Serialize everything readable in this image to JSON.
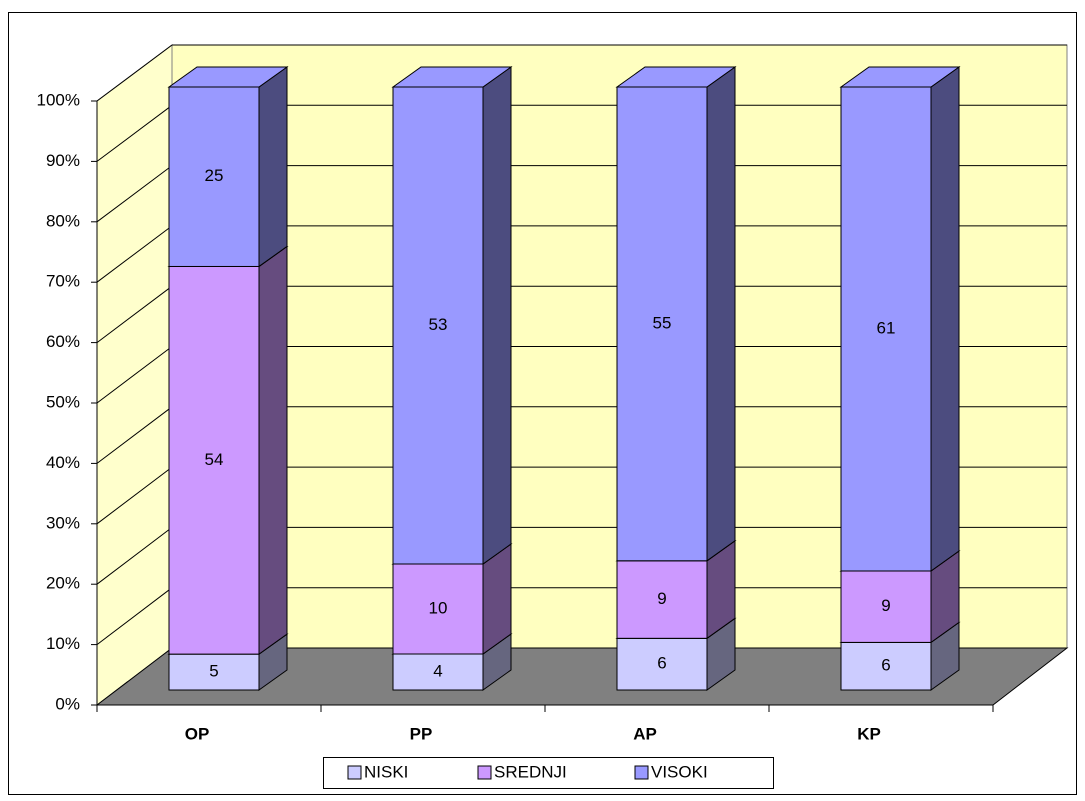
{
  "chart_data": {
    "type": "bar",
    "stacked": "percent",
    "categories": [
      "OP",
      "PP",
      "AP",
      "KP"
    ],
    "series": [
      {
        "name": "NISKI",
        "color": "#ccccff",
        "side_color": "#66667f",
        "values": [
          5,
          4,
          6,
          6
        ]
      },
      {
        "name": "SREDNJI",
        "color": "#cc99ff",
        "side_color": "#664c7f",
        "values": [
          54,
          10,
          9,
          9
        ]
      },
      {
        "name": "VISOKI",
        "color": "#9999ff",
        "side_color": "#4c4c7f",
        "values": [
          25,
          53,
          55,
          61
        ]
      }
    ],
    "ylim": [
      0,
      100
    ],
    "yticks": [
      {
        "value": 0,
        "label": "0%"
      },
      {
        "value": 10,
        "label": "10%"
      },
      {
        "value": 20,
        "label": "20%"
      },
      {
        "value": 30,
        "label": "30%"
      },
      {
        "value": 40,
        "label": "40%"
      },
      {
        "value": 50,
        "label": "50%"
      },
      {
        "value": 60,
        "label": "60%"
      },
      {
        "value": 70,
        "label": "70%"
      },
      {
        "value": 80,
        "label": "80%"
      },
      {
        "value": 90,
        "label": "90%"
      },
      {
        "value": 100,
        "label": "100%"
      }
    ],
    "grid": true,
    "legend": "bottom"
  }
}
